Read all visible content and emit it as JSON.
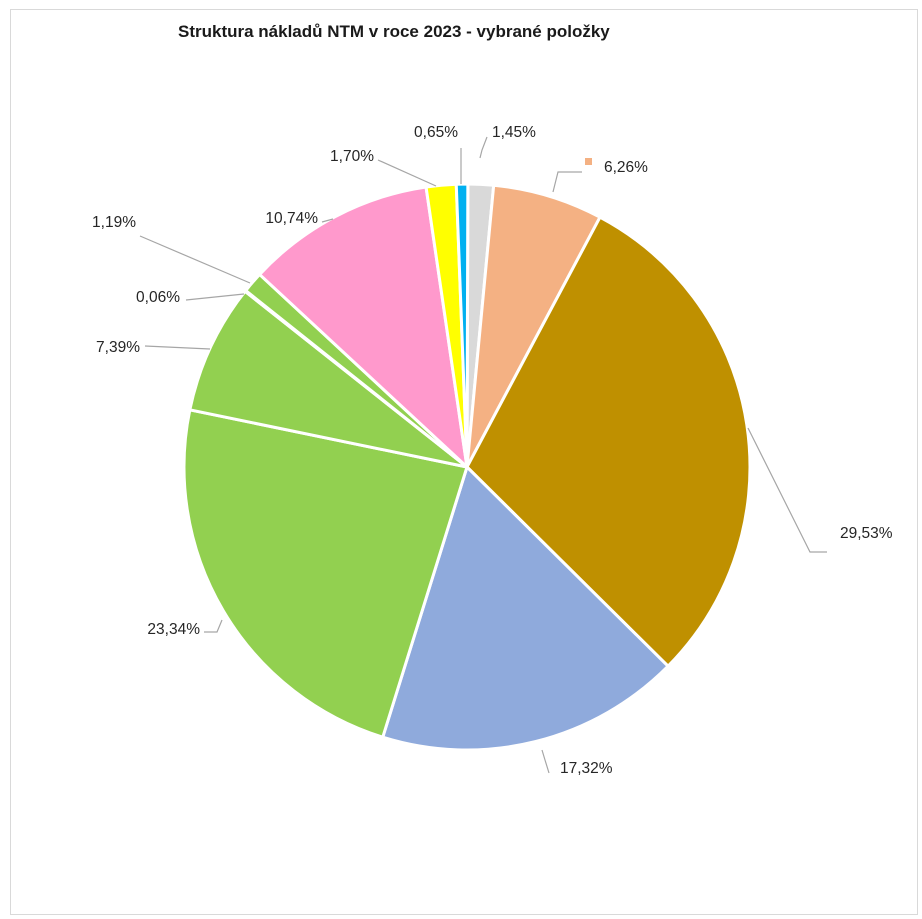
{
  "chart_data": {
    "type": "pie",
    "title": "Struktura nákladů NTM v roce 2023 - vybrané položky",
    "slices": [
      {
        "value": 1.45,
        "label": "1,45%",
        "color": "#d9d9d9"
      },
      {
        "value": 6.26,
        "label": "6,26%",
        "color": "#f4b183"
      },
      {
        "value": 29.53,
        "label": "29,53%",
        "color": "#bf9000"
      },
      {
        "value": 17.32,
        "label": "17,32%",
        "color": "#8faadc"
      },
      {
        "value": 23.34,
        "label": "23,34%",
        "color": "#92d050"
      },
      {
        "value": 7.39,
        "label": "7,39%",
        "color": "#92d050"
      },
      {
        "value": 0.06,
        "label": "0,06%",
        "color": "#92d050"
      },
      {
        "value": 1.19,
        "label": "1,19%",
        "color": "#92d050"
      },
      {
        "value": 10.74,
        "label": "10,74%",
        "color": "#ff99cc"
      },
      {
        "value": 1.7,
        "label": "1,70%",
        "color": "#ffff00"
      },
      {
        "value": 0.65,
        "label": "0,65%",
        "color": "#00b0f0"
      }
    ],
    "legend": "none"
  }
}
